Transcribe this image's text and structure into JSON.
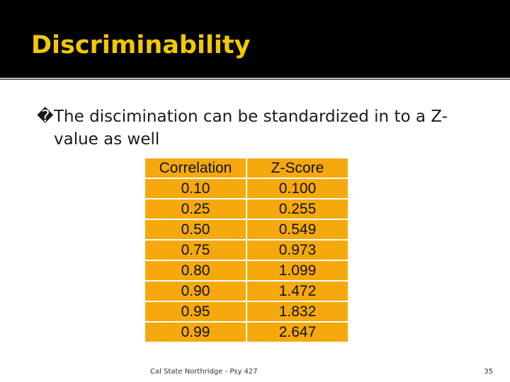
{
  "slide": {
    "title": "Discriminability",
    "bullet_marker": "�",
    "bullet_text": "The discimination can be standardized in to a Z-value as well"
  },
  "table": {
    "headers": [
      "Correlation",
      "Z-Score"
    ],
    "rows": [
      [
        "0.10",
        "0.100"
      ],
      [
        "0.25",
        "0.255"
      ],
      [
        "0.50",
        "0.549"
      ],
      [
        "0.75",
        "0.973"
      ],
      [
        "0.80",
        "1.099"
      ],
      [
        "0.90",
        "1.472"
      ],
      [
        "0.95",
        "1.832"
      ],
      [
        "0.99",
        "2.647"
      ]
    ],
    "fill_color": "#f5a90d"
  },
  "footer": {
    "text": "Cal State Northridge - Psy 427",
    "page_number": "35"
  },
  "colors": {
    "title_bar": "#000000",
    "title_text": "#f2c800"
  }
}
